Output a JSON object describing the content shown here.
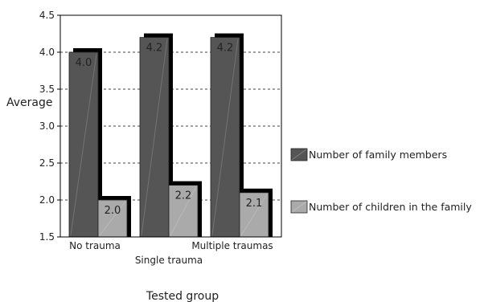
{
  "chart_data": {
    "type": "bar",
    "xlabel": "Tested group",
    "ylabel": "Average",
    "ylim": [
      1.5,
      4.5
    ],
    "yticks": [
      "1.5",
      "2.0",
      "2.5",
      "3.0",
      "3.5",
      "4.0",
      "4.5"
    ],
    "grid": true,
    "legend_position": "right",
    "categories": [
      "No trauma",
      "Single trauma",
      "Multiple traumas"
    ],
    "series": [
      {
        "name": "Number of family members",
        "values": [
          4.0,
          4.2,
          4.2
        ],
        "labels": [
          "4.0",
          "4.2",
          "4.2"
        ],
        "color": "#555555"
      },
      {
        "name": "Number of children in the family",
        "values": [
          2.0,
          2.2,
          2.1
        ],
        "labels": [
          "2.0",
          "2.2",
          "2.1"
        ],
        "color": "#aaaaaa"
      }
    ]
  }
}
